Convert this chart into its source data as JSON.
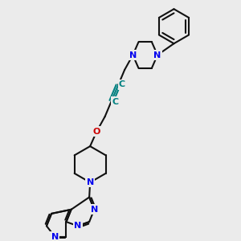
{
  "bg_color": "#ebebeb",
  "bond_color": "#111111",
  "N_color": "#0000ee",
  "O_color": "#cc0000",
  "C_color": "#008080",
  "lw": 1.5,
  "figsize": [
    3.0,
    3.0
  ],
  "dpi": 100,
  "xlim": [
    25,
    275
  ],
  "ylim": [
    5,
    295
  ]
}
